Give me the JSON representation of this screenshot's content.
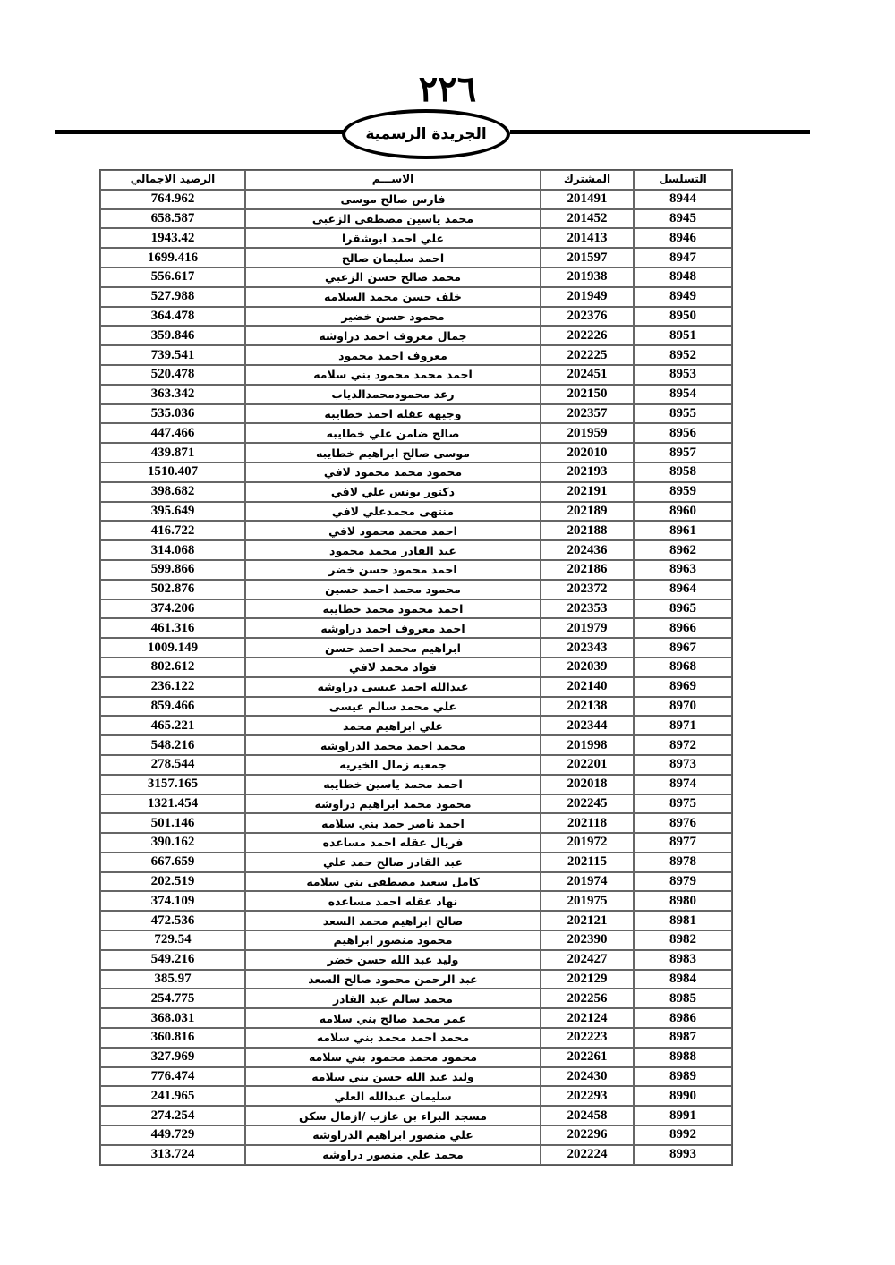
{
  "page_number": "٢٢٦",
  "header_title": "الجريدة الرسمية",
  "columns": [
    "التسلسل",
    "المشترك",
    "الاســـم",
    "الرصيد الاجمالي"
  ],
  "rows": [
    [
      "8944",
      "201491",
      "فارس صالح موسى",
      "764.962"
    ],
    [
      "8945",
      "201452",
      "محمد ياسين مصطفى الزعبي",
      "658.587"
    ],
    [
      "8946",
      "201413",
      "علي احمد ابوشقرا",
      "1943.42"
    ],
    [
      "8947",
      "201597",
      "احمد سليمان صالح",
      "1699.416"
    ],
    [
      "8948",
      "201938",
      "محمد صالح حسن الزعبي",
      "556.617"
    ],
    [
      "8949",
      "201949",
      "خلف حسن محمد السلامه",
      "527.988"
    ],
    [
      "8950",
      "202376",
      "محمود حسن خضير",
      "364.478"
    ],
    [
      "8951",
      "202226",
      "جمال معروف احمد دراوشه",
      "359.846"
    ],
    [
      "8952",
      "202225",
      "معروف  احمد محمود",
      "739.541"
    ],
    [
      "8953",
      "202451",
      "احمد محمد محمود بني سلامه",
      "520.478"
    ],
    [
      "8954",
      "202150",
      "رعد محمودمحمدالذياب",
      "363.342"
    ],
    [
      "8955",
      "202357",
      "وجيهه عقله احمد خطايبه",
      "535.036"
    ],
    [
      "8956",
      "201959",
      "صالح ضامن علي خطايبه",
      "447.466"
    ],
    [
      "8957",
      "202010",
      "موسى صالح ابراهيم خطايبه",
      "439.871"
    ],
    [
      "8958",
      "202193",
      "محمود محمد محمود لافي",
      "1510.407"
    ],
    [
      "8959",
      "202191",
      "دكتور يونس  علي لافي",
      "398.682"
    ],
    [
      "8960",
      "202189",
      "منتهى محمدعلي لافي",
      "395.649"
    ],
    [
      "8961",
      "202188",
      "احمد محمد محمود  لافي",
      "416.722"
    ],
    [
      "8962",
      "202436",
      "عبد القادر محمد محمود",
      "314.068"
    ],
    [
      "8963",
      "202186",
      "احمد محمود حسن خضر",
      "599.866"
    ],
    [
      "8964",
      "202372",
      "محمود محمد احمد حسين",
      "502.876"
    ],
    [
      "8965",
      "202353",
      "احمد محمود محمد خطايبه",
      "374.206"
    ],
    [
      "8966",
      "201979",
      "احمد معروف احمد دراوشه",
      "461.316"
    ],
    [
      "8967",
      "202343",
      "ابراهيم محمد احمد حسن",
      "1009.149"
    ],
    [
      "8968",
      "202039",
      "فواد محمد لافي",
      "802.612"
    ],
    [
      "8969",
      "202140",
      "عبدالله احمد عيسى دراوشه",
      "236.122"
    ],
    [
      "8970",
      "202138",
      "علي محمد سالم عيسى",
      "859.466"
    ],
    [
      "8971",
      "202344",
      "علي ابراهيم محمد",
      "465.221"
    ],
    [
      "8972",
      "201998",
      "محمد احمد محمد الدراوشه",
      "548.216"
    ],
    [
      "8973",
      "202201",
      "جمعيه زمال الخيريه",
      "278.544"
    ],
    [
      "8974",
      "202018",
      "احمد محمد ياسين خطايبه",
      "3157.165"
    ],
    [
      "8975",
      "202245",
      "محمود محمد ابراهيم دراوشه",
      "1321.454"
    ],
    [
      "8976",
      "202118",
      "احمد ناصر حمد بني سلامه",
      "501.146"
    ],
    [
      "8977",
      "201972",
      "فريال عقله احمد مساعده",
      "390.162"
    ],
    [
      "8978",
      "202115",
      "عبد القادر صالح حمد علي",
      "667.659"
    ],
    [
      "8979",
      "201974",
      "كامل سعيد مصطفى بني سلامه",
      "202.519"
    ],
    [
      "8980",
      "201975",
      "نهاد عقله احمد مساعده",
      "374.109"
    ],
    [
      "8981",
      "202121",
      "صالح ابراهيم محمد السعد",
      "472.536"
    ],
    [
      "8982",
      "202390",
      "محمود منصور ابراهيم",
      "729.54"
    ],
    [
      "8983",
      "202427",
      "وليد عبد الله حسن خضر",
      "549.216"
    ],
    [
      "8984",
      "202129",
      "عبد الرحمن محمود صالح السعد",
      "385.97"
    ],
    [
      "8985",
      "202256",
      "محمد سالم عبد القادر",
      "254.775"
    ],
    [
      "8986",
      "202124",
      "عمر محمد صالح بني سلامه",
      "368.031"
    ],
    [
      "8987",
      "202223",
      "محمد احمد محمد بني سلامه",
      "360.816"
    ],
    [
      "8988",
      "202261",
      "محمود محمد محمود بني سلامه",
      "327.969"
    ],
    [
      "8989",
      "202430",
      "وليد عبد الله حسن بني سلامه",
      "776.474"
    ],
    [
      "8990",
      "202293",
      "سليمان عبدالله العلي",
      "241.965"
    ],
    [
      "8991",
      "202458",
      "مسجد البراء بن عازب /ازمال سكن",
      "274.254"
    ],
    [
      "8992",
      "202296",
      "علي منصور ابراهيم الدراوشه",
      "449.729"
    ],
    [
      "8993",
      "202224",
      "محمد علي منصور دراوشه",
      "313.724"
    ]
  ]
}
